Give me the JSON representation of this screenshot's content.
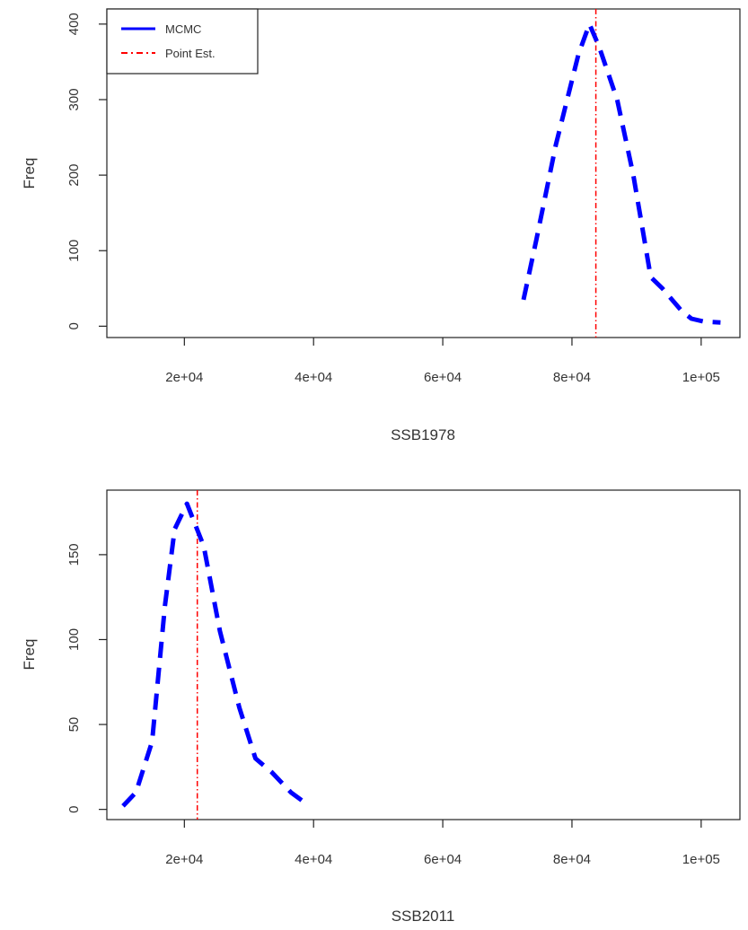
{
  "chart_data": [
    {
      "type": "line",
      "xlabel": "SSB1978",
      "ylabel": "Freq",
      "xlim": [
        8000,
        106000
      ],
      "ylim": [
        -15,
        420
      ],
      "xticks": [
        20000,
        40000,
        60000,
        80000,
        100000
      ],
      "xtick_labels": [
        "2e+04",
        "4e+04",
        "6e+04",
        "8e+04",
        "1e+05"
      ],
      "yticks": [
        0,
        100,
        200,
        300,
        400
      ],
      "ytick_labels": [
        "0",
        "100",
        "200",
        "300",
        "400"
      ],
      "grid": false,
      "legend": {
        "position": "top-left",
        "entries": [
          {
            "label": "MCMC",
            "color": "#0000ff",
            "style": "solid"
          },
          {
            "label": "Point Est.",
            "color": "#ff0000",
            "style": "dotdash"
          }
        ]
      },
      "series": [
        {
          "color": "#0000ff",
          "x": [
            72500,
            74500,
            77500,
            81000,
            82700,
            84200,
            87000,
            89500,
            92200,
            94000,
            97000,
            98500,
            100500,
            103000
          ],
          "y": [
            35,
            115,
            240,
            360,
            400,
            370,
            300,
            200,
            65,
            50,
            20,
            10,
            6,
            5
          ]
        }
      ],
      "vline": {
        "x": 83700,
        "color": "#ff0000"
      }
    },
    {
      "type": "line",
      "xlabel": "SSB2011",
      "ylabel": "Freq",
      "xlim": [
        8000,
        106000
      ],
      "ylim": [
        -6,
        188
      ],
      "xticks": [
        20000,
        40000,
        60000,
        80000,
        100000
      ],
      "xtick_labels": [
        "2e+04",
        "4e+04",
        "6e+04",
        "8e+04",
        "1e+05"
      ],
      "yticks": [
        0,
        50,
        100,
        150
      ],
      "ytick_labels": [
        "0",
        "50",
        "100",
        "150"
      ],
      "grid": false,
      "series": [
        {
          "color": "#0000ff",
          "x": [
            10500,
            12500,
            15000,
            17000,
            18500,
            20400,
            23000,
            25500,
            28500,
            31000,
            33500,
            36500,
            39000
          ],
          "y": [
            2,
            10,
            40,
            120,
            165,
            180,
            155,
            105,
            60,
            30,
            22,
            10,
            3
          ]
        }
      ],
      "vline": {
        "x": 22000,
        "color": "#ff0000"
      }
    }
  ]
}
